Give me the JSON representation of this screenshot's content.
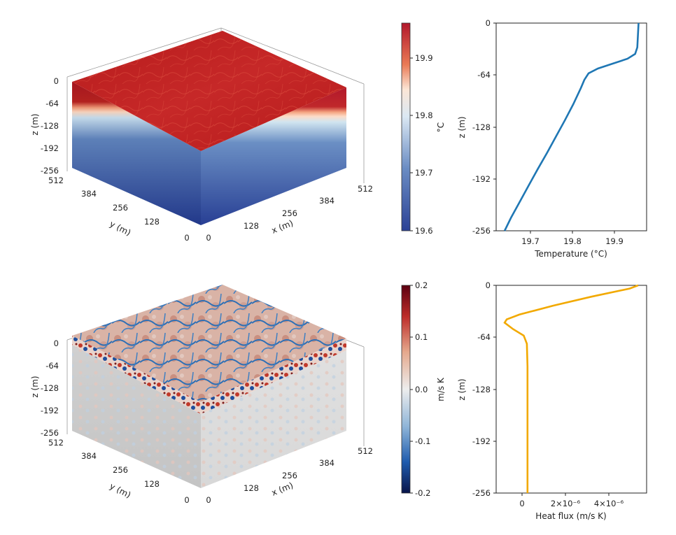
{
  "colors": {
    "temperature_line": "#1f77b4",
    "heat_flux_line": "#f2a900",
    "axis": "#222222"
  },
  "chart_data": [
    {
      "type": "area",
      "panel": "temperature-3d-block",
      "xlabel": "x (m)",
      "ylabel": "y (m)",
      "zlabel": "z (m)",
      "x_ticks": [
        "0",
        "128",
        "256",
        "384",
        "512"
      ],
      "y_ticks": [
        "0",
        "128",
        "256",
        "384",
        "512"
      ],
      "z_ticks": [
        "0",
        "-64",
        "-128",
        "-192",
        "-256"
      ],
      "colorscale": "red-white-blue (red = warm)"
    },
    {
      "type": "heatmap",
      "panel": "temperature-colorbar",
      "label": "°C",
      "ticks": [
        "19.6",
        "19.7",
        "19.8",
        "19.9"
      ],
      "range": [
        19.6,
        19.96
      ]
    },
    {
      "type": "line",
      "panel": "temperature-profile",
      "xlabel": "Temperature (°C)",
      "ylabel": "z (m)",
      "xlim": [
        19.62,
        19.975
      ],
      "ylim": [
        -256,
        0
      ],
      "x_ticks": [
        "19.7",
        "19.8",
        "19.9"
      ],
      "y_ticks": [
        "0",
        "-64",
        "-128",
        "-192",
        "-256"
      ],
      "points": [
        {
          "x": 19.956,
          "y": 0
        },
        {
          "x": 19.955,
          "y": -10
        },
        {
          "x": 19.954,
          "y": -20
        },
        {
          "x": 19.953,
          "y": -30
        },
        {
          "x": 19.948,
          "y": -38
        },
        {
          "x": 19.93,
          "y": -44
        },
        {
          "x": 19.895,
          "y": -50
        },
        {
          "x": 19.86,
          "y": -56
        },
        {
          "x": 19.838,
          "y": -62
        },
        {
          "x": 19.828,
          "y": -70
        },
        {
          "x": 19.82,
          "y": -80
        },
        {
          "x": 19.802,
          "y": -100
        },
        {
          "x": 19.782,
          "y": -120
        },
        {
          "x": 19.761,
          "y": -140
        },
        {
          "x": 19.74,
          "y": -160
        },
        {
          "x": 19.718,
          "y": -180
        },
        {
          "x": 19.697,
          "y": -200
        },
        {
          "x": 19.676,
          "y": -220
        },
        {
          "x": 19.655,
          "y": -240
        },
        {
          "x": 19.64,
          "y": -256
        }
      ]
    },
    {
      "type": "area",
      "panel": "heat-flux-3d-block",
      "xlabel": "x (m)",
      "ylabel": "y (m)",
      "zlabel": "z (m)",
      "x_ticks": [
        "0",
        "128",
        "256",
        "384",
        "512"
      ],
      "y_ticks": [
        "0",
        "128",
        "256",
        "384",
        "512"
      ],
      "z_ticks": [
        "0",
        "-64",
        "-128",
        "-192",
        "-256"
      ],
      "colorscale": "blue-white-red (diverging)"
    },
    {
      "type": "heatmap",
      "panel": "heat-flux-colorbar",
      "label": "m/s K",
      "ticks": [
        "-0.2",
        "-0.1",
        "0.0",
        "0.1",
        "0.2"
      ],
      "range": [
        -0.2,
        0.2
      ]
    },
    {
      "type": "line",
      "panel": "heat-flux-profile",
      "xlabel": "Heat flux (m/s K)",
      "ylabel": "z (m)",
      "xlim": [
        -1.5e-06,
        5.6e-06
      ],
      "ylim": [
        -256,
        0
      ],
      "x_ticks": [
        "0",
        "2×10⁻⁶",
        "4×10⁻⁶"
      ],
      "y_ticks": [
        "0",
        "-64",
        "-128",
        "-192",
        "-256"
      ],
      "points": [
        {
          "x": 5.2e-06,
          "y": 0
        },
        {
          "x": 4.8e-06,
          "y": -4
        },
        {
          "x": 3e-06,
          "y": -14
        },
        {
          "x": 1.2e-06,
          "y": -25
        },
        {
          "x": -4e-07,
          "y": -36
        },
        {
          "x": -1e-06,
          "y": -42
        },
        {
          "x": -1.1e-06,
          "y": -46
        },
        {
          "x": -7e-07,
          "y": -54
        },
        {
          "x": -2e-07,
          "y": -62
        },
        {
          "x": -5e-08,
          "y": -72
        },
        {
          "x": -2e-08,
          "y": -100
        },
        {
          "x": -2e-08,
          "y": -160
        },
        {
          "x": -2e-08,
          "y": -220
        },
        {
          "x": -2e-08,
          "y": -256
        }
      ]
    }
  ]
}
